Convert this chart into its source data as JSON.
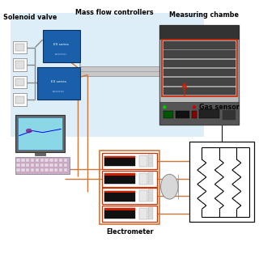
{
  "background": "#ffffff",
  "labels": {
    "mass_flow": "Mass flow controllers",
    "solenoid": "Solenoid valve",
    "measuring": "Measuring chambe",
    "gas_sensor": "Gas sensor",
    "electrometer": "Electrometer"
  },
  "colors": {
    "blue_mfc": "#1a5faa",
    "orange": "#c8783c",
    "red": "#cc2200",
    "dark": "#222222",
    "gray_chamber": "#b8b8b8",
    "dark_slot": "#3a3a3a",
    "screen_cyan": "#88d8e8",
    "keyboard_pink": "#d0aac0",
    "light_bg": "#ddeeff"
  },
  "figsize": [
    3.2,
    3.2
  ],
  "dpi": 100
}
